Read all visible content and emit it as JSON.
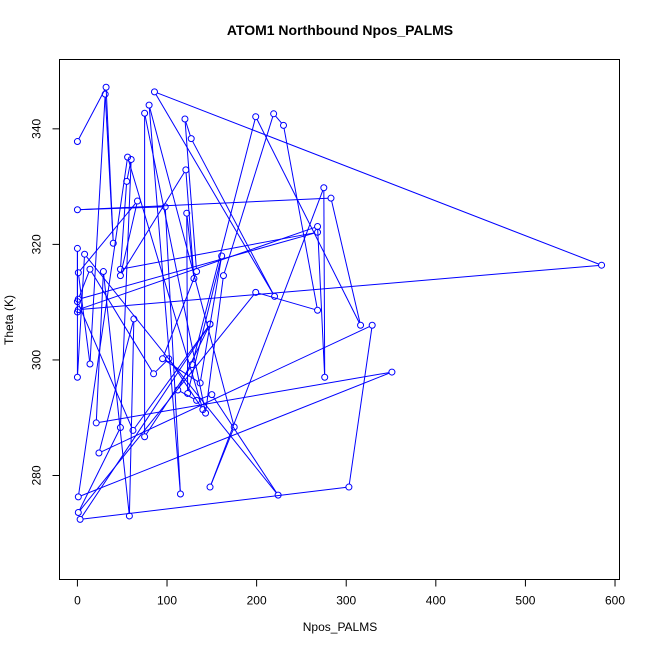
{
  "chart_data": {
    "type": "line",
    "title": "ATOM1 Northbound Npos_PALMS",
    "xlabel": "Npos_PALMS",
    "ylabel": "Theta (K)",
    "xlim": [
      -20,
      605
    ],
    "ylim": [
      262,
      352
    ],
    "xticks": [
      0,
      100,
      200,
      300,
      400,
      500,
      600
    ],
    "yticks": [
      280,
      300,
      320,
      340
    ],
    "marker": "open-circle",
    "line_color": "#0000ff",
    "grid": false,
    "points": [
      {
        "x": 0,
        "y": 337.8
      },
      {
        "x": 32,
        "y": 347.2
      },
      {
        "x": 40,
        "y": 320.2
      },
      {
        "x": 31,
        "y": 346.0
      },
      {
        "x": 14,
        "y": 299.3
      },
      {
        "x": 1,
        "y": 315.1
      },
      {
        "x": 67,
        "y": 327.5
      },
      {
        "x": 48,
        "y": 314.6
      },
      {
        "x": 121,
        "y": 332.9
      },
      {
        "x": 130,
        "y": 314.1
      },
      {
        "x": 122,
        "y": 325.4
      },
      {
        "x": 123,
        "y": 294.2
      },
      {
        "x": 161,
        "y": 318.0
      },
      {
        "x": 137,
        "y": 296.0
      },
      {
        "x": 95,
        "y": 300.2
      },
      {
        "x": 133,
        "y": 315.3
      },
      {
        "x": 120,
        "y": 341.7
      },
      {
        "x": 127,
        "y": 338.3
      },
      {
        "x": 220,
        "y": 311.0
      },
      {
        "x": 86,
        "y": 346.4
      },
      {
        "x": 585,
        "y": 316.4
      },
      {
        "x": 1,
        "y": 308.7
      },
      {
        "x": 268,
        "y": 323.1
      },
      {
        "x": 276,
        "y": 297.0
      },
      {
        "x": 275,
        "y": 329.8
      },
      {
        "x": 148,
        "y": 278.0
      },
      {
        "x": 175,
        "y": 288.4
      },
      {
        "x": 80,
        "y": 344.1
      },
      {
        "x": 115,
        "y": 276.8
      },
      {
        "x": 98,
        "y": 326.5
      },
      {
        "x": 0,
        "y": 326.0
      },
      {
        "x": 283,
        "y": 328.0
      },
      {
        "x": 316,
        "y": 306.0
      },
      {
        "x": 199,
        "y": 342.1
      },
      {
        "x": 128,
        "y": 299.2
      },
      {
        "x": 75,
        "y": 286.7
      },
      {
        "x": 75,
        "y": 342.7
      },
      {
        "x": 143,
        "y": 290.8
      },
      {
        "x": 163,
        "y": 314.6
      },
      {
        "x": 219,
        "y": 342.6
      },
      {
        "x": 230,
        "y": 340.6
      },
      {
        "x": 268,
        "y": 308.6
      },
      {
        "x": 199,
        "y": 311.7
      },
      {
        "x": 1,
        "y": 273.6
      },
      {
        "x": 48,
        "y": 288.3
      },
      {
        "x": 60,
        "y": 334.7
      },
      {
        "x": 55,
        "y": 330.9
      },
      {
        "x": 48,
        "y": 315.7
      },
      {
        "x": 268,
        "y": 322.1
      },
      {
        "x": 1,
        "y": 310.5
      },
      {
        "x": 14,
        "y": 315.7
      },
      {
        "x": 85,
        "y": 297.6
      },
      {
        "x": 102,
        "y": 300.2
      },
      {
        "x": 140,
        "y": 291.4
      },
      {
        "x": 56,
        "y": 335.1
      },
      {
        "x": 1,
        "y": 276.3
      },
      {
        "x": 351,
        "y": 297.9
      },
      {
        "x": 21,
        "y": 289.1
      },
      {
        "x": 29,
        "y": 315.3
      },
      {
        "x": 58,
        "y": 273.0
      },
      {
        "x": 63,
        "y": 307.1
      },
      {
        "x": 24,
        "y": 283.9
      },
      {
        "x": 329,
        "y": 306.0
      },
      {
        "x": 303,
        "y": 278.0
      },
      {
        "x": 3,
        "y": 272.4
      },
      {
        "x": 148,
        "y": 306.2
      },
      {
        "x": 112,
        "y": 294.8
      },
      {
        "x": 133,
        "y": 293.0
      },
      {
        "x": 150,
        "y": 294.0
      },
      {
        "x": 224,
        "y": 276.6
      },
      {
        "x": 8,
        "y": 318.3
      },
      {
        "x": 0,
        "y": 297.0
      },
      {
        "x": 0,
        "y": 319.3
      },
      {
        "x": 0,
        "y": 308.3
      },
      {
        "x": 0,
        "y": 310.1
      },
      {
        "x": 62,
        "y": 287.8
      },
      {
        "x": 148,
        "y": 306.2
      }
    ]
  }
}
